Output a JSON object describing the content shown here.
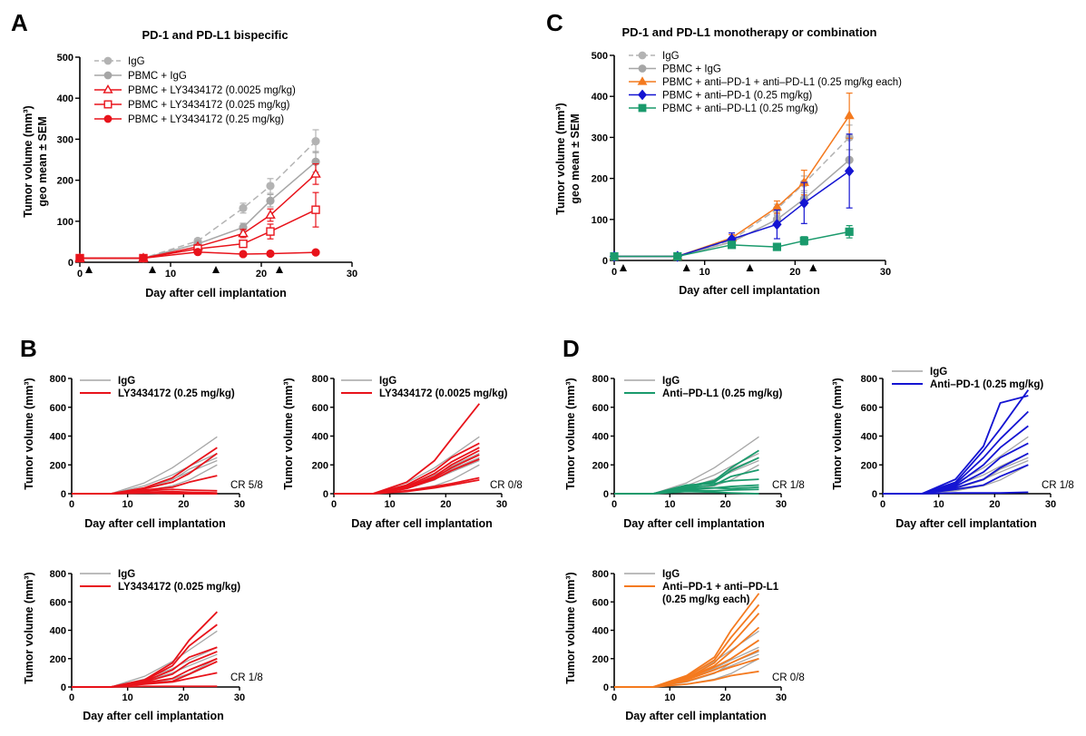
{
  "colors": {
    "igg": "#b3b3b3",
    "pbmc_igg": "#a6a6a6",
    "red": "#e8131b",
    "orange": "#f47a1f",
    "blue": "#1414d2",
    "green": "#1a9a6c",
    "black": "#000000"
  },
  "panel_labels": {
    "A": "A",
    "B": "B",
    "C": "C",
    "D": "D"
  },
  "common": {
    "xlabel": "Day after cell implantation",
    "ylabel_mean_line1": "Tumor volume (mm³)",
    "ylabel_mean_line2": "geo mean ± SEM",
    "ylabel_indiv": "Tumor volume (mm³)"
  },
  "chart_data": [
    {
      "id": "A",
      "type": "line",
      "title": "PD-1 and PD-L1 bispecific",
      "xlabel": "Day after cell implantation",
      "ylabel": "Tumor volume (mm³) geo mean ± SEM",
      "xlim": [
        0,
        30
      ],
      "ylim": [
        0,
        500
      ],
      "xticks": [
        0,
        10,
        20,
        30
      ],
      "yticks": [
        0,
        100,
        200,
        300,
        400,
        500
      ],
      "dosing_days": [
        1,
        8,
        15,
        22
      ],
      "x": [
        0,
        7,
        13,
        18,
        21,
        26
      ],
      "series": [
        {
          "name": "IgG",
          "color": "#b3b3b3",
          "dashed": true,
          "marker": "circle",
          "values": [
            10,
            10,
            52,
            132,
            186,
            295
          ],
          "err": [
            2,
            2,
            6,
            12,
            18,
            28
          ]
        },
        {
          "name": "PBMC + IgG",
          "color": "#a6a6a6",
          "dashed": false,
          "marker": "circle",
          "values": [
            10,
            10,
            45,
            85,
            150,
            245
          ],
          "err": [
            2,
            2,
            5,
            10,
            15,
            25
          ]
        },
        {
          "name": "PBMC + LY3434172 (0.0025 mg/kg)",
          "color": "#e8131b",
          "dashed": false,
          "marker": "triangle-open",
          "values": [
            10,
            10,
            38,
            70,
            115,
            215
          ],
          "err": [
            2,
            2,
            5,
            10,
            15,
            25
          ]
        },
        {
          "name": "PBMC + LY3434172 (0.025 mg/kg)",
          "color": "#e8131b",
          "dashed": false,
          "marker": "square-open",
          "values": [
            10,
            10,
            33,
            45,
            75,
            128
          ],
          "err": [
            2,
            2,
            4,
            8,
            18,
            42
          ]
        },
        {
          "name": "PBMC + LY3434172 (0.25 mg/kg)",
          "color": "#e8131b",
          "dashed": false,
          "marker": "circle",
          "values": [
            10,
            10,
            25,
            20,
            21,
            24
          ],
          "err": [
            2,
            2,
            3,
            3,
            3,
            3
          ]
        }
      ]
    },
    {
      "id": "C",
      "type": "line",
      "title": "PD-1 and PD-L1 monotherapy or combination",
      "xlabel": "Day after cell implantation",
      "ylabel": "Tumor volume (mm³) geo mean ± SEM",
      "xlim": [
        0,
        30
      ],
      "ylim": [
        0,
        500
      ],
      "xticks": [
        0,
        10,
        20,
        30
      ],
      "yticks": [
        0,
        100,
        200,
        300,
        400,
        500
      ],
      "dosing_days": [
        1,
        8,
        15,
        22
      ],
      "x": [
        0,
        7,
        13,
        18,
        21,
        26
      ],
      "series": [
        {
          "name": "IgG",
          "color": "#b3b3b3",
          "dashed": true,
          "marker": "circle",
          "values": [
            10,
            10,
            50,
            125,
            188,
            300
          ],
          "err": [
            2,
            2,
            6,
            12,
            18,
            30
          ]
        },
        {
          "name": "PBMC + IgG",
          "color": "#a6a6a6",
          "dashed": false,
          "marker": "circle",
          "values": [
            10,
            10,
            45,
            100,
            150,
            245
          ],
          "err": [
            2,
            2,
            5,
            10,
            15,
            25
          ]
        },
        {
          "name": "PBMC + anti–PD-1 + anti–PD-L1 (0.25 mg/kg each)",
          "color": "#f47a1f",
          "dashed": false,
          "marker": "triangle",
          "values": [
            10,
            10,
            55,
            130,
            190,
            353
          ],
          "err": [
            2,
            2,
            8,
            15,
            30,
            55
          ]
        },
        {
          "name": "PBMC + anti–PD-1 (0.25 mg/kg)",
          "color": "#1414d2",
          "dashed": false,
          "marker": "diamond",
          "values": [
            10,
            10,
            52,
            88,
            140,
            218
          ],
          "err": [
            2,
            2,
            15,
            35,
            50,
            90
          ]
        },
        {
          "name": "PBMC + anti–PD-L1 (0.25 mg/kg)",
          "color": "#1a9a6c",
          "dashed": false,
          "marker": "square",
          "values": [
            10,
            10,
            38,
            33,
            48,
            70
          ],
          "err": [
            2,
            2,
            6,
            6,
            10,
            15
          ]
        }
      ]
    },
    {
      "id": "B1",
      "type": "line",
      "xlim": [
        0,
        30
      ],
      "ylim": [
        0,
        800
      ],
      "xticks": [
        0,
        10,
        20,
        30
      ],
      "yticks": [
        0,
        200,
        400,
        600,
        800
      ],
      "legend": [
        "IgG",
        "LY3434172 (0.25 mg/kg)"
      ],
      "cr": "CR 5/8",
      "x": [
        0,
        7,
        13,
        18,
        21,
        26
      ],
      "reference": {
        "name": "IgG",
        "color": "#a6a6a6",
        "values": [
          [
            0,
            0,
            35,
            95,
            170,
            250
          ],
          [
            0,
            0,
            55,
            130,
            190,
            280
          ],
          [
            0,
            0,
            75,
            180,
            260,
            395
          ],
          [
            0,
            0,
            20,
            55,
            95,
            200
          ],
          [
            0,
            0,
            40,
            100,
            150,
            230
          ]
        ]
      },
      "treated": {
        "name": "LY3434172 (0.25 mg/kg)",
        "color": "#e8131b",
        "values": [
          [
            0,
            0,
            40,
            110,
            190,
            320
          ],
          [
            0,
            0,
            35,
            80,
            140,
            280
          ],
          [
            0,
            0,
            25,
            45,
            80,
            125
          ],
          [
            0,
            0,
            20,
            30,
            25,
            20
          ],
          [
            0,
            0,
            10,
            15,
            10,
            5
          ],
          [
            0,
            0,
            5,
            5,
            5,
            0
          ],
          [
            0,
            0,
            5,
            0,
            0,
            0
          ],
          [
            0,
            0,
            8,
            5,
            2,
            0
          ]
        ]
      }
    },
    {
      "id": "B2",
      "type": "line",
      "xlim": [
        0,
        30
      ],
      "ylim": [
        0,
        800
      ],
      "xticks": [
        0,
        10,
        20,
        30
      ],
      "yticks": [
        0,
        200,
        400,
        600,
        800
      ],
      "legend": [
        "IgG",
        "LY3434172 (0.0025 mg/kg)"
      ],
      "cr": "CR 0/8",
      "x": [
        0,
        7,
        13,
        18,
        21,
        26
      ],
      "reference": {
        "name": "IgG",
        "color": "#a6a6a6",
        "values": [
          [
            0,
            0,
            35,
            95,
            170,
            250
          ],
          [
            0,
            0,
            55,
            130,
            190,
            280
          ],
          [
            0,
            0,
            75,
            180,
            260,
            395
          ],
          [
            0,
            0,
            20,
            55,
            95,
            200
          ],
          [
            0,
            0,
            40,
            100,
            150,
            230
          ]
        ]
      },
      "treated": {
        "name": "LY3434172 (0.0025 mg/kg)",
        "color": "#e8131b",
        "values": [
          [
            0,
            0,
            80,
            230,
            380,
            625
          ],
          [
            0,
            0,
            60,
            160,
            250,
            350
          ],
          [
            0,
            0,
            50,
            140,
            220,
            320
          ],
          [
            0,
            0,
            45,
            120,
            200,
            300
          ],
          [
            0,
            0,
            40,
            110,
            180,
            270
          ],
          [
            0,
            0,
            35,
            100,
            160,
            240
          ],
          [
            0,
            0,
            20,
            50,
            70,
            110
          ],
          [
            0,
            0,
            15,
            40,
            60,
            95
          ]
        ]
      }
    },
    {
      "id": "B3",
      "type": "line",
      "xlim": [
        0,
        30
      ],
      "ylim": [
        0,
        800
      ],
      "xticks": [
        0,
        10,
        20,
        30
      ],
      "yticks": [
        0,
        200,
        400,
        600,
        800
      ],
      "legend": [
        "IgG",
        "LY3434172 (0.025 mg/kg)"
      ],
      "cr": "CR 1/8",
      "x": [
        0,
        7,
        13,
        18,
        21,
        26
      ],
      "reference": {
        "name": "IgG",
        "color": "#a6a6a6",
        "values": [
          [
            0,
            0,
            35,
            95,
            170,
            250
          ],
          [
            0,
            0,
            55,
            130,
            190,
            280
          ],
          [
            0,
            0,
            75,
            180,
            260,
            395
          ],
          [
            0,
            0,
            20,
            55,
            95,
            200
          ],
          [
            0,
            0,
            40,
            100,
            150,
            230
          ]
        ]
      },
      "treated": {
        "name": "LY3434172 (0.025 mg/kg)",
        "color": "#e8131b",
        "values": [
          [
            0,
            0,
            50,
            170,
            330,
            530
          ],
          [
            0,
            0,
            45,
            150,
            290,
            440
          ],
          [
            0,
            0,
            40,
            120,
            210,
            280
          ],
          [
            0,
            0,
            35,
            90,
            170,
            250
          ],
          [
            0,
            0,
            30,
            60,
            120,
            200
          ],
          [
            0,
            0,
            25,
            40,
            90,
            180
          ],
          [
            0,
            0,
            20,
            35,
            60,
            100
          ],
          [
            0,
            0,
            5,
            5,
            5,
            5
          ]
        ]
      }
    },
    {
      "id": "D1",
      "type": "line",
      "xlim": [
        0,
        30
      ],
      "ylim": [
        0,
        800
      ],
      "xticks": [
        0,
        10,
        20,
        30
      ],
      "yticks": [
        0,
        200,
        400,
        600,
        800
      ],
      "legend": [
        "IgG",
        "Anti–PD-L1 (0.25 mg/kg)"
      ],
      "cr": "CR 1/8",
      "x": [
        0,
        7,
        13,
        18,
        21,
        26
      ],
      "reference": {
        "name": "IgG",
        "color": "#a6a6a6",
        "values": [
          [
            0,
            0,
            35,
            95,
            170,
            250
          ],
          [
            0,
            0,
            55,
            130,
            190,
            280
          ],
          [
            0,
            0,
            75,
            180,
            260,
            395
          ],
          [
            0,
            0,
            20,
            55,
            95,
            200
          ],
          [
            0,
            0,
            40,
            100,
            150,
            230
          ]
        ]
      },
      "treated": {
        "name": "Anti–PD-L1 (0.25 mg/kg)",
        "color": "#1a9a6c",
        "values": [
          [
            0,
            0,
            50,
            90,
            180,
            300
          ],
          [
            0,
            0,
            45,
            80,
            160,
            250
          ],
          [
            0,
            0,
            40,
            60,
            120,
            165
          ],
          [
            0,
            0,
            60,
            70,
            90,
            100
          ],
          [
            0,
            0,
            30,
            40,
            50,
            60
          ],
          [
            0,
            0,
            35,
            40,
            35,
            45
          ],
          [
            0,
            0,
            25,
            20,
            25,
            30
          ],
          [
            0,
            0,
            15,
            10,
            5,
            0
          ]
        ]
      }
    },
    {
      "id": "D2",
      "type": "line",
      "xlim": [
        0,
        30
      ],
      "ylim": [
        0,
        800
      ],
      "xticks": [
        0,
        10,
        20,
        30
      ],
      "yticks": [
        0,
        200,
        400,
        600,
        800
      ],
      "legend": [
        "IgG",
        "Anti–PD-1 (0.25 mg/kg)"
      ],
      "cr": "CR 1/8",
      "x": [
        0,
        7,
        13,
        18,
        21,
        26
      ],
      "reference": {
        "name": "IgG",
        "color": "#a6a6a6",
        "values": [
          [
            0,
            0,
            35,
            95,
            170,
            250
          ],
          [
            0,
            0,
            55,
            130,
            190,
            280
          ],
          [
            0,
            0,
            75,
            180,
            260,
            395
          ],
          [
            0,
            0,
            20,
            55,
            95,
            200
          ],
          [
            0,
            0,
            40,
            100,
            150,
            230
          ]
        ]
      },
      "treated": {
        "name": "Anti–PD-1 (0.25 mg/kg)",
        "color": "#1414d2",
        "values": [
          [
            0,
            0,
            100,
            330,
            630,
            680
          ],
          [
            0,
            0,
            80,
            300,
            450,
            720
          ],
          [
            0,
            0,
            70,
            250,
            380,
            570
          ],
          [
            0,
            0,
            60,
            200,
            320,
            470
          ],
          [
            0,
            0,
            50,
            150,
            250,
            350
          ],
          [
            0,
            0,
            40,
            100,
            180,
            280
          ],
          [
            0,
            0,
            30,
            60,
            120,
            200
          ],
          [
            0,
            0,
            5,
            5,
            5,
            10
          ]
        ]
      }
    },
    {
      "id": "D3",
      "type": "line",
      "xlim": [
        0,
        30
      ],
      "ylim": [
        0,
        800
      ],
      "xticks": [
        0,
        10,
        20,
        30
      ],
      "yticks": [
        0,
        200,
        400,
        600,
        800
      ],
      "legend": [
        "IgG",
        "Anti–PD-1 + anti–PD-L1",
        "(0.25 mg/kg each)"
      ],
      "cr": "CR 0/8",
      "x": [
        0,
        7,
        13,
        18,
        21,
        26
      ],
      "reference": {
        "name": "IgG",
        "color": "#a6a6a6",
        "values": [
          [
            0,
            0,
            35,
            95,
            170,
            250
          ],
          [
            0,
            0,
            55,
            130,
            190,
            280
          ],
          [
            0,
            0,
            75,
            180,
            260,
            395
          ],
          [
            0,
            0,
            20,
            55,
            95,
            200
          ],
          [
            0,
            0,
            40,
            100,
            150,
            230
          ]
        ]
      },
      "treated": {
        "name": "Anti–PD-1 + anti–PD-L1 (0.25 mg/kg each)",
        "color": "#f47a1f",
        "values": [
          [
            0,
            0,
            80,
            210,
            400,
            660
          ],
          [
            0,
            0,
            70,
            190,
            350,
            580
          ],
          [
            0,
            0,
            60,
            170,
            300,
            520
          ],
          [
            0,
            0,
            60,
            150,
            250,
            420
          ],
          [
            0,
            0,
            55,
            140,
            200,
            330
          ],
          [
            0,
            0,
            50,
            120,
            170,
            260
          ],
          [
            0,
            0,
            40,
            100,
            140,
            200
          ],
          [
            0,
            0,
            20,
            50,
            80,
            110
          ]
        ]
      }
    }
  ]
}
